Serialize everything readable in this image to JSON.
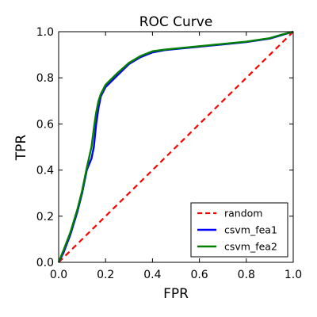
{
  "chart_data": {
    "type": "line",
    "title": "ROC Curve",
    "xlabel": "FPR",
    "ylabel": "TPR",
    "xlim": [
      0.0,
      1.0
    ],
    "ylim": [
      0.0,
      1.0
    ],
    "xticks": [
      "0.0",
      "0.2",
      "0.4",
      "0.6",
      "0.8",
      "1.0"
    ],
    "yticks": [
      "0.0",
      "0.2",
      "0.4",
      "0.6",
      "0.8",
      "1.0"
    ],
    "grid": false,
    "legend_position": "lower-right",
    "series": [
      {
        "name": "random",
        "color": "#ff0000",
        "style": "dashed",
        "x": [
          0.0,
          1.0
        ],
        "y": [
          0.0,
          1.0
        ]
      },
      {
        "name": "csvm_fea1",
        "color": "#0000ff",
        "style": "solid",
        "x": [
          0.0,
          0.02,
          0.05,
          0.08,
          0.1,
          0.12,
          0.14,
          0.15,
          0.16,
          0.17,
          0.18,
          0.2,
          0.22,
          0.25,
          0.3,
          0.35,
          0.4,
          0.45,
          0.5,
          0.6,
          0.7,
          0.8,
          0.9,
          0.95,
          1.0
        ],
        "y": [
          0.0,
          0.04,
          0.12,
          0.22,
          0.3,
          0.4,
          0.45,
          0.5,
          0.6,
          0.67,
          0.72,
          0.76,
          0.78,
          0.81,
          0.86,
          0.89,
          0.91,
          0.92,
          0.925,
          0.935,
          0.945,
          0.955,
          0.97,
          0.985,
          1.0
        ]
      },
      {
        "name": "csvm_fea2",
        "color": "#008000",
        "style": "solid",
        "x": [
          0.0,
          0.02,
          0.05,
          0.08,
          0.1,
          0.12,
          0.14,
          0.15,
          0.16,
          0.17,
          0.18,
          0.2,
          0.22,
          0.25,
          0.3,
          0.35,
          0.4,
          0.45,
          0.5,
          0.6,
          0.7,
          0.8,
          0.9,
          0.95,
          1.0
        ],
        "y": [
          0.0,
          0.05,
          0.13,
          0.23,
          0.31,
          0.41,
          0.5,
          0.58,
          0.65,
          0.7,
          0.73,
          0.77,
          0.79,
          0.82,
          0.865,
          0.895,
          0.915,
          0.922,
          0.927,
          0.937,
          0.947,
          0.957,
          0.972,
          0.987,
          1.0
        ]
      }
    ]
  }
}
